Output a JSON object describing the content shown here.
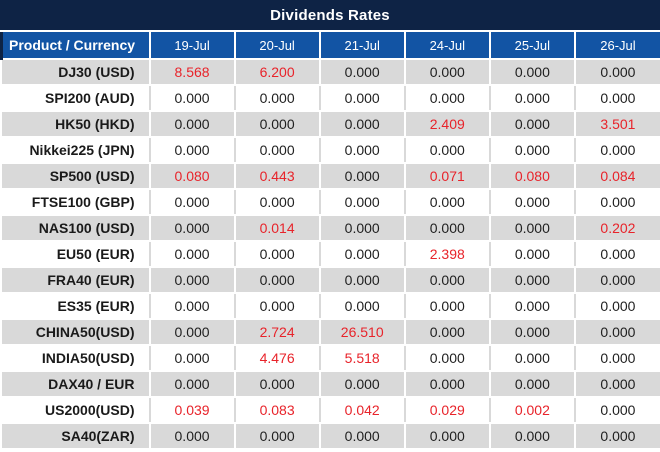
{
  "title": "Dividends Rates",
  "colors": {
    "title_bar_navy": "#0e2345",
    "header_blue": "#1254a4",
    "row_gray": "#d9d9d9",
    "value_red": "#e8232a",
    "value_black": "#1f1f1f"
  },
  "table": {
    "header": [
      "Product / Currency",
      "19-Jul",
      "20-Jul",
      "21-Jul",
      "24-Jul",
      "25-Jul",
      "26-Jul"
    ],
    "rows": [
      {
        "product": "DJ30 (USD)",
        "values": [
          "8.568",
          "6.200",
          "0.000",
          "0.000",
          "0.000",
          "0.000"
        ],
        "red": [
          true,
          true,
          false,
          false,
          false,
          false
        ]
      },
      {
        "product": "SPI200 (AUD)",
        "values": [
          "0.000",
          "0.000",
          "0.000",
          "0.000",
          "0.000",
          "0.000"
        ],
        "red": [
          false,
          false,
          false,
          false,
          false,
          false
        ]
      },
      {
        "product": "HK50 (HKD)",
        "values": [
          "0.000",
          "0.000",
          "0.000",
          "2.409",
          "0.000",
          "3.501"
        ],
        "red": [
          false,
          false,
          false,
          true,
          false,
          true
        ]
      },
      {
        "product": "Nikkei225 (JPN)",
        "values": [
          "0.000",
          "0.000",
          "0.000",
          "0.000",
          "0.000",
          "0.000"
        ],
        "red": [
          false,
          false,
          false,
          false,
          false,
          false
        ]
      },
      {
        "product": "SP500 (USD)",
        "values": [
          "0.080",
          "0.443",
          "0.000",
          "0.071",
          "0.080",
          "0.084"
        ],
        "red": [
          true,
          true,
          false,
          true,
          true,
          true
        ]
      },
      {
        "product": "FTSE100 (GBP)",
        "values": [
          "0.000",
          "0.000",
          "0.000",
          "0.000",
          "0.000",
          "0.000"
        ],
        "red": [
          false,
          false,
          false,
          false,
          false,
          false
        ]
      },
      {
        "product": "NAS100 (USD)",
        "values": [
          "0.000",
          "0.014",
          "0.000",
          "0.000",
          "0.000",
          "0.202"
        ],
        "red": [
          false,
          true,
          false,
          false,
          false,
          true
        ]
      },
      {
        "product": "EU50 (EUR)",
        "values": [
          "0.000",
          "0.000",
          "0.000",
          "2.398",
          "0.000",
          "0.000"
        ],
        "red": [
          false,
          false,
          false,
          true,
          false,
          false
        ]
      },
      {
        "product": "FRA40 (EUR)",
        "values": [
          "0.000",
          "0.000",
          "0.000",
          "0.000",
          "0.000",
          "0.000"
        ],
        "red": [
          false,
          false,
          false,
          false,
          false,
          false
        ]
      },
      {
        "product": "ES35 (EUR)",
        "values": [
          "0.000",
          "0.000",
          "0.000",
          "0.000",
          "0.000",
          "0.000"
        ],
        "red": [
          false,
          false,
          false,
          false,
          false,
          false
        ]
      },
      {
        "product": "CHINA50(USD)",
        "values": [
          "0.000",
          "2.724",
          "26.510",
          "0.000",
          "0.000",
          "0.000"
        ],
        "red": [
          false,
          true,
          true,
          false,
          false,
          false
        ]
      },
      {
        "product": "INDIA50(USD)",
        "values": [
          "0.000",
          "4.476",
          "5.518",
          "0.000",
          "0.000",
          "0.000"
        ],
        "red": [
          false,
          true,
          true,
          false,
          false,
          false
        ]
      },
      {
        "product": "DAX40 / EUR",
        "values": [
          "0.000",
          "0.000",
          "0.000",
          "0.000",
          "0.000",
          "0.000"
        ],
        "red": [
          false,
          false,
          false,
          false,
          false,
          false
        ]
      },
      {
        "product": "US2000(USD)",
        "values": [
          "0.039",
          "0.083",
          "0.042",
          "0.029",
          "0.002",
          "0.000"
        ],
        "red": [
          true,
          true,
          true,
          true,
          true,
          false
        ]
      },
      {
        "product": "SA40(ZAR)",
        "values": [
          "0.000",
          "0.000",
          "0.000",
          "0.000",
          "0.000",
          "0.000"
        ],
        "red": [
          false,
          false,
          false,
          false,
          false,
          false
        ]
      }
    ]
  }
}
